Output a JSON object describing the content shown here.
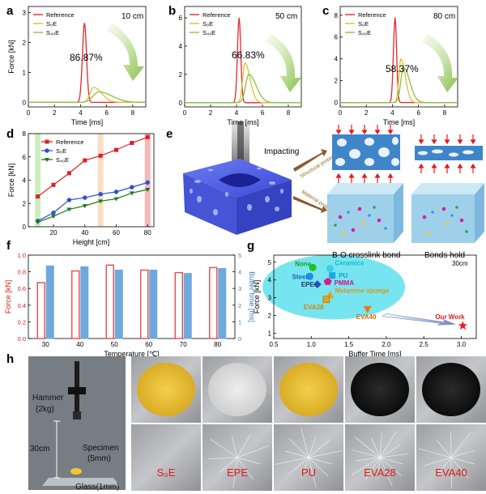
{
  "panels": {
    "a": {
      "letter": "a",
      "height_label": "10 cm",
      "percent": "86.87%"
    },
    "b": {
      "letter": "b",
      "height_label": "50 cm",
      "percent": "66.83%"
    },
    "c": {
      "letter": "c",
      "height_label": "80 cm",
      "percent": "58.37%"
    },
    "d": {
      "letter": "d"
    },
    "e": {
      "letter": "e",
      "impacting": "Impacting",
      "structural": "Structural protection",
      "material": "Material protection",
      "bo_label": "B-O crosslink bond",
      "bonds_hold": "Bonds hold"
    },
    "f": {
      "letter": "f"
    },
    "g": {
      "letter": "g"
    },
    "h": {
      "letter": "h",
      "hammer": "Hammer",
      "hammer_mass": "(2kg)",
      "drop_height": "30cm",
      "specimen": "Specimen",
      "specimen_thickness": "(5mm)",
      "glass": "Glass(1mm)",
      "labels": [
        "S₀E",
        "EPE",
        "PU",
        "EVA28",
        "EVA40"
      ]
    }
  },
  "colors": {
    "reference": "#e8262b",
    "s0e": "#e3c02a",
    "s40e": "#86c14a",
    "d_ref": "#e11e26",
    "d_s0e": "#2a4fd8",
    "d_s40e": "#1b7a1d",
    "f_force": "#e84a4a",
    "f_buffer": "#6fa8dc",
    "g_ellipse": "#5fe0ec"
  },
  "chart_data": [
    {
      "type": "line",
      "panel": "a",
      "xlabel": "Time [ms]",
      "ylabel": "Force [kN]",
      "xlim": [
        0,
        9
      ],
      "ylim": [
        -0.15,
        3.2
      ],
      "xticks": [
        0,
        2,
        4,
        6,
        8
      ],
      "yticks": [
        0,
        1,
        2,
        3
      ],
      "series": [
        {
          "name": "Reference",
          "peak": 2.65,
          "peak_t": 4.3,
          "width": 0.22
        },
        {
          "name": "S₀E",
          "peak": 0.5,
          "peak_t": 5.0,
          "width": 0.55
        },
        {
          "name": "S₄₀E",
          "peak": 0.35,
          "peak_t": 5.4,
          "width": 0.9
        }
      ]
    },
    {
      "type": "line",
      "panel": "b",
      "xlabel": "Time [ms]",
      "ylabel": "",
      "xlim": [
        0,
        9
      ],
      "ylim": [
        -0.3,
        6.8
      ],
      "xticks": [
        0,
        2,
        4,
        6,
        8
      ],
      "yticks": [
        0,
        2,
        4,
        6
      ],
      "series": [
        {
          "name": "Reference",
          "peak": 6.0,
          "peak_t": 4.2,
          "width": 0.18
        },
        {
          "name": "S₀E",
          "peak": 2.8,
          "peak_t": 4.65,
          "width": 0.35
        },
        {
          "name": "S₄₀E",
          "peak": 2.0,
          "peak_t": 4.95,
          "width": 0.5
        }
      ]
    },
    {
      "type": "line",
      "panel": "c",
      "xlabel": "Time [ms]",
      "ylabel": "",
      "xlim": [
        0,
        9
      ],
      "ylim": [
        -0.4,
        8.8
      ],
      "xticks": [
        0,
        2,
        4,
        6,
        8
      ],
      "yticks": [
        0,
        2,
        4,
        6,
        8
      ],
      "series": [
        {
          "name": "Reference",
          "peak": 7.8,
          "peak_t": 4.2,
          "width": 0.17
        },
        {
          "name": "S₀E",
          "peak": 4.0,
          "peak_t": 4.65,
          "width": 0.3
        },
        {
          "name": "S₄₀E",
          "peak": 3.2,
          "peak_t": 4.85,
          "width": 0.42
        }
      ]
    },
    {
      "type": "line",
      "panel": "d",
      "xlabel": "Height [cm]",
      "ylabel": "Force [kN]",
      "xlim": [
        4,
        84
      ],
      "ylim": [
        0,
        8
      ],
      "xticks": [
        20,
        40,
        60,
        80
      ],
      "yticks": [
        0,
        2,
        4,
        6,
        8
      ],
      "highlight_bands": [
        {
          "x": 10,
          "color": "#bfe8b0"
        },
        {
          "x": 50,
          "color": "#f6d6b5"
        },
        {
          "x": 80,
          "color": "#f4a7aa"
        }
      ],
      "x": [
        10,
        20,
        30,
        40,
        50,
        60,
        70,
        80
      ],
      "series": [
        {
          "name": "Reference",
          "values": [
            2.6,
            3.6,
            4.6,
            5.7,
            6.1,
            6.6,
            7.2,
            7.7
          ]
        },
        {
          "name": "S₀E",
          "values": [
            0.5,
            1.2,
            2.3,
            2.5,
            2.8,
            3.0,
            3.4,
            3.8
          ]
        },
        {
          "name": "S₄₀E",
          "values": [
            0.4,
            0.9,
            1.5,
            1.8,
            2.2,
            2.4,
            2.9,
            3.2
          ]
        }
      ]
    },
    {
      "type": "bar",
      "panel": "f",
      "xlabel": "Temperature [℃]",
      "ylabel": "Force [kN]",
      "ylabel_right": "Buffer time [ms]",
      "categories": [
        "30",
        "40",
        "50",
        "60",
        "70",
        "80"
      ],
      "ylim": [
        0,
        1.0
      ],
      "ylim_right": [
        0,
        5
      ],
      "yticks": [
        "0.0",
        "0.2",
        "0.4",
        "0.6",
        "0.8",
        "1.0"
      ],
      "yticks_right": [
        "0",
        "1",
        "2",
        "3",
        "4",
        "5"
      ],
      "series": [
        {
          "name": "Force",
          "values": [
            0.67,
            0.81,
            0.88,
            0.82,
            0.79,
            0.85
          ]
        },
        {
          "name": "Buffer time",
          "values": [
            4.35,
            4.3,
            4.1,
            4.1,
            3.9,
            4.2
          ]
        }
      ]
    },
    {
      "type": "scatter",
      "panel": "g",
      "xlabel": "Buffer Time [ms]",
      "ylabel": "Force [kN]",
      "annotation": "30cm",
      "xlim": [
        0.5,
        3.2
      ],
      "ylim": [
        0.7,
        5.4
      ],
      "xticks": [
        "0.5",
        "1.0",
        "1.5",
        "2.0",
        "2.5",
        "3.0"
      ],
      "yticks": [
        "1",
        "2",
        "3",
        "4",
        "5"
      ],
      "points": [
        {
          "name": "None",
          "x": 1.02,
          "y": 4.7,
          "color": "#1ec11e",
          "shape": "circle"
        },
        {
          "name": "Ceramics",
          "x": 1.25,
          "y": 4.65,
          "color": "#36d2e6",
          "shape": "circle"
        },
        {
          "name": "Steel",
          "x": 0.98,
          "y": 4.2,
          "color": "#1e8ce8",
          "shape": "circle"
        },
        {
          "name": "PU",
          "x": 1.28,
          "y": 4.25,
          "color": "#1ea5e6",
          "shape": "square"
        },
        {
          "name": "EPE",
          "x": 1.08,
          "y": 3.75,
          "color": "#2b4fb0",
          "shape": "diamond"
        },
        {
          "name": "PMMA",
          "x": 1.22,
          "y": 3.9,
          "color": "#e2178c",
          "shape": "pentagon"
        },
        {
          "name": "Melamine sponge",
          "x": 1.25,
          "y": 3.15,
          "color": "#e0a322",
          "shape": "triangle"
        },
        {
          "name": "EVA28",
          "x": 1.2,
          "y": 2.9,
          "color": "#e0a322",
          "shape": "cube"
        },
        {
          "name": "EVA40",
          "x": 1.75,
          "y": 2.35,
          "color": "#e57b12",
          "shape": "triangle-down"
        },
        {
          "name": "Our Work",
          "x": 3.02,
          "y": 1.42,
          "color": "#ea1c24",
          "shape": "star"
        }
      ]
    }
  ]
}
